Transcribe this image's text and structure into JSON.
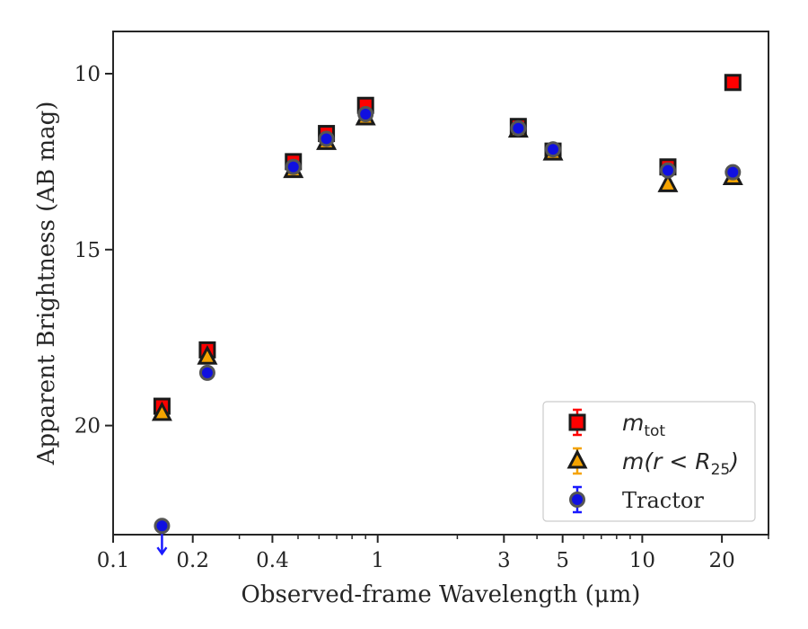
{
  "chart_data": {
    "type": "scatter",
    "title": "",
    "xlabel": "Observed-frame Wavelength (μm)",
    "ylabel": "Apparent Brightness (AB mag)",
    "x_scale": "log",
    "xlim": [
      0.1,
      30
    ],
    "ylim": [
      23.1,
      8.8
    ],
    "y_inverted": true,
    "x_ticks": [
      {
        "value": 0.1,
        "label": "0.1"
      },
      {
        "value": 0.2,
        "label": "0.2"
      },
      {
        "value": 0.4,
        "label": "0.4"
      },
      {
        "value": 1,
        "label": "1"
      },
      {
        "value": 3,
        "label": "3"
      },
      {
        "value": 5,
        "label": "5"
      },
      {
        "value": 10,
        "label": "10"
      },
      {
        "value": 20,
        "label": "20"
      }
    ],
    "y_ticks": [
      {
        "value": 10,
        "label": "10"
      },
      {
        "value": 15,
        "label": "15"
      },
      {
        "value": 20,
        "label": "20"
      }
    ],
    "grid": false,
    "legend_position": "lower-right",
    "series": [
      {
        "name": "m_tot",
        "label_main": "m",
        "label_sub": "tot",
        "marker": "square",
        "face_color": "#ff0000",
        "edge_color": "#1a1a1a",
        "error_color": "#ff0000",
        "points": [
          {
            "x": 0.153,
            "y": 19.45
          },
          {
            "x": 0.227,
            "y": 17.85
          },
          {
            "x": 0.48,
            "y": 12.5
          },
          {
            "x": 0.64,
            "y": 11.7
          },
          {
            "x": 0.9,
            "y": 10.9
          },
          {
            "x": 3.4,
            "y": 11.5
          },
          {
            "x": 4.6,
            "y": 12.2
          },
          {
            "x": 12.5,
            "y": 12.65
          },
          {
            "x": 22.0,
            "y": 10.25
          }
        ]
      },
      {
        "name": "m(r<R_25)",
        "label_main": "m(r < R",
        "label_sub": "25",
        "label_tail": ")",
        "marker": "triangle",
        "face_color": "#f5a300",
        "edge_color": "#1a1a1a",
        "error_color": "#f5a300",
        "points": [
          {
            "x": 0.153,
            "y": 19.65
          },
          {
            "x": 0.227,
            "y": 18.05
          },
          {
            "x": 0.48,
            "y": 12.75
          },
          {
            "x": 0.64,
            "y": 11.95
          },
          {
            "x": 0.9,
            "y": 11.25
          },
          {
            "x": 3.4,
            "y": 11.6
          },
          {
            "x": 4.6,
            "y": 12.25
          },
          {
            "x": 12.5,
            "y": 13.15
          },
          {
            "x": 22.0,
            "y": 12.95
          }
        ]
      },
      {
        "name": "Tractor",
        "label_main": "Tractor",
        "marker": "circle",
        "face_color": "#1010e0",
        "edge_color": "#555555",
        "error_color": "#1a1aff",
        "points": [
          {
            "x": 0.153,
            "y": 22.85,
            "upper_limit": true
          },
          {
            "x": 0.227,
            "y": 18.5
          },
          {
            "x": 0.48,
            "y": 12.65
          },
          {
            "x": 0.64,
            "y": 11.85
          },
          {
            "x": 0.9,
            "y": 11.15
          },
          {
            "x": 3.4,
            "y": 11.55
          },
          {
            "x": 4.6,
            "y": 12.15
          },
          {
            "x": 12.5,
            "y": 12.75
          },
          {
            "x": 22.0,
            "y": 12.8
          }
        ]
      }
    ]
  }
}
